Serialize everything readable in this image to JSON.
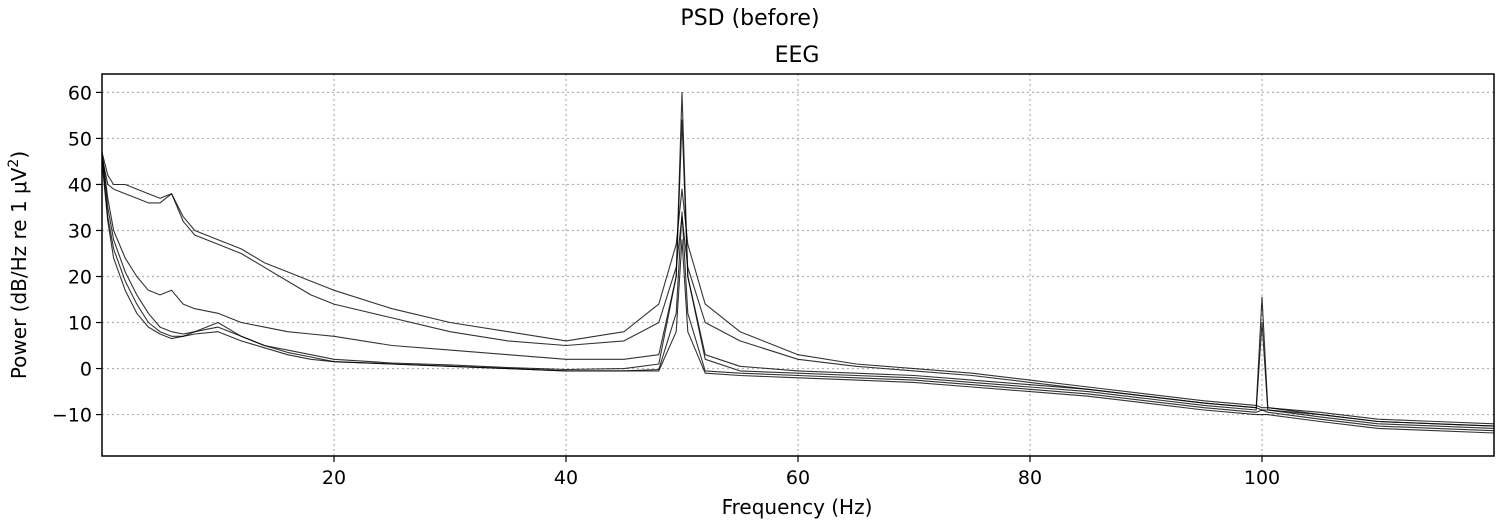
{
  "figure": {
    "suptitle": "PSD (before)"
  },
  "chart_data": {
    "type": "line",
    "title": "EEG",
    "xlabel": "Frequency (Hz)",
    "ylabel_prefix": "Power (dB/Hz re 1 μV",
    "ylabel_sup": "2",
    "ylabel_suffix": ")",
    "xlim": [
      0,
      120
    ],
    "ylim": [
      -19,
      64
    ],
    "xticks": [
      20,
      40,
      60,
      80,
      100
    ],
    "yticks": [
      -10,
      0,
      10,
      20,
      30,
      40,
      50,
      60
    ],
    "grid": true,
    "line_color": "#000000",
    "series": [
      {
        "x": [
          0,
          0.5,
          1,
          2,
          3,
          4,
          5,
          6,
          7,
          8,
          10,
          12,
          14,
          16,
          18,
          20,
          25,
          30,
          35,
          40,
          45,
          48,
          49.5,
          50,
          50.5,
          52,
          55,
          60,
          65,
          70,
          75,
          80,
          85,
          90,
          95,
          99.5,
          100,
          100.5,
          105,
          110,
          115,
          120
        ],
        "values": [
          46,
          33,
          26,
          19,
          14,
          10,
          8,
          7,
          7,
          7.5,
          8,
          6,
          4.5,
          3,
          2,
          1.5,
          1,
          0.5,
          0,
          -0.5,
          -0.5,
          -0.5,
          8,
          28,
          8,
          -1,
          -1.5,
          -2,
          -2.5,
          -3,
          -4,
          -5,
          -6,
          -7.5,
          -9,
          -10,
          -10,
          -10,
          -11.5,
          -13,
          -13.5,
          -14
        ]
      },
      {
        "x": [
          0,
          0.5,
          1,
          2,
          3,
          4,
          5,
          6,
          7,
          8,
          10,
          12,
          14,
          16,
          18,
          20,
          25,
          30,
          35,
          40,
          45,
          48,
          49.5,
          50,
          50.5,
          52,
          55,
          60,
          65,
          70,
          75,
          80,
          85,
          90,
          95,
          99.5,
          100,
          100.5,
          105,
          110,
          115,
          120
        ],
        "values": [
          45,
          32,
          24,
          17,
          12,
          9,
          7.5,
          6.5,
          7,
          8,
          10,
          7,
          5,
          3.5,
          2.5,
          1.5,
          1,
          0.5,
          0,
          -0.5,
          -0.5,
          -0.2,
          12,
          34,
          12,
          -0.5,
          -1,
          -1.5,
          -2,
          -2.5,
          -3.5,
          -4.5,
          -5.5,
          -7,
          -8.5,
          -9.5,
          -9,
          -9.5,
          -11,
          -12.5,
          -13,
          -13.5
        ]
      },
      {
        "x": [
          0,
          0.5,
          1,
          2,
          3,
          4,
          5,
          6,
          7,
          8,
          10,
          12,
          14,
          16,
          18,
          20,
          25,
          30,
          35,
          40,
          45,
          48,
          49.5,
          50,
          50.5,
          52,
          55,
          60,
          65,
          70,
          75,
          80,
          85,
          90,
          95,
          99.5,
          100,
          100.5,
          105,
          110,
          115,
          120
        ],
        "values": [
          47,
          35,
          28,
          21,
          16,
          12,
          9,
          8,
          7.5,
          8,
          9,
          7,
          5,
          4,
          3,
          2,
          1.2,
          0.8,
          0.2,
          -0.2,
          0,
          1,
          20,
          54,
          20,
          2,
          -0.5,
          -1,
          -1.5,
          -2,
          -3,
          -4,
          -5,
          -6.5,
          -8,
          -9,
          10,
          -9,
          -10.5,
          -12,
          -12.5,
          -13
        ]
      },
      {
        "x": [
          0,
          0.5,
          1,
          2,
          3,
          4,
          5,
          6,
          7,
          8,
          10,
          12,
          14,
          16,
          18,
          20,
          25,
          30,
          35,
          40,
          45,
          48,
          49.5,
          50,
          50.5,
          52,
          55,
          60,
          65,
          70,
          75,
          80,
          85,
          90,
          95,
          99.5,
          100,
          100.5,
          105,
          110,
          115,
          120
        ],
        "values": [
          47,
          37,
          30,
          24,
          20,
          17,
          16,
          17,
          14,
          13,
          12,
          10,
          9,
          8,
          7.5,
          7,
          5,
          4,
          3,
          2,
          2,
          3,
          20,
          60,
          20,
          3,
          0.5,
          -0.5,
          -1,
          -1.5,
          -2.5,
          -3.5,
          -4.5,
          -6,
          -7.5,
          -8.5,
          15.5,
          -8.5,
          -10,
          -11.5,
          -12,
          -12.5
        ]
      },
      {
        "x": [
          0,
          0.5,
          1,
          2,
          3,
          4,
          5,
          6,
          7,
          8,
          10,
          12,
          14,
          16,
          18,
          20,
          25,
          30,
          35,
          40,
          45,
          48,
          49.5,
          50,
          50.5,
          52,
          55,
          60,
          65,
          70,
          75,
          80,
          85,
          90,
          95,
          99.5,
          100,
          100.5,
          105,
          110,
          115,
          120
        ],
        "values": [
          47,
          42,
          40,
          40,
          39,
          38,
          37,
          38,
          33,
          30,
          28,
          26,
          23,
          21,
          19,
          17,
          13,
          10,
          8,
          6,
          8,
          14,
          27,
          39,
          27,
          14,
          8,
          3,
          1,
          0,
          -1,
          -2.5,
          -4,
          -5.5,
          -7,
          -8,
          -8.5,
          -8.5,
          -9.5,
          -11,
          -11.5,
          -12
        ]
      },
      {
        "x": [
          0,
          0.5,
          1,
          2,
          3,
          4,
          5,
          6,
          7,
          8,
          10,
          12,
          14,
          16,
          18,
          20,
          25,
          30,
          35,
          40,
          45,
          48,
          49.5,
          50,
          50.5,
          52,
          55,
          60,
          65,
          70,
          75,
          80,
          85,
          90,
          95,
          99.5,
          100,
          100.5,
          105,
          110,
          115,
          120
        ],
        "values": [
          46,
          40,
          39,
          38,
          37,
          36,
          36,
          38,
          32,
          29,
          27,
          25,
          22,
          19,
          16,
          14,
          11,
          8,
          6,
          5,
          6,
          10,
          22,
          33,
          22,
          10,
          6,
          2,
          0.5,
          -0.5,
          -1.5,
          -3,
          -4.5,
          -6,
          -7.5,
          -8.5,
          -9,
          -9,
          -10,
          -11.5,
          -12,
          -12.5
        ]
      }
    ]
  }
}
